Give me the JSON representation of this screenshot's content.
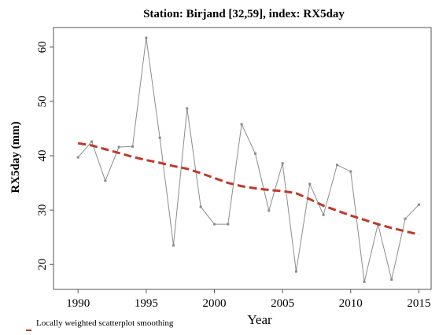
{
  "chart_data": {
    "type": "line",
    "title": "Station: Birjand [32,59], index: RX5day",
    "x_label": "Year",
    "y_label": "RX5day (mm)",
    "x": [
      1990,
      1991,
      1992,
      1993,
      1994,
      1995,
      1996,
      1997,
      1998,
      1999,
      2000,
      2001,
      2002,
      2003,
      2004,
      2005,
      2006,
      2007,
      2008,
      2009,
      2010,
      2011,
      2012,
      2013,
      2014,
      2015
    ],
    "series": [
      {
        "color": "#8c8c8c",
        "style": "solid",
        "markers": true,
        "values": [
          39.7,
          42.6,
          35.4,
          41.6,
          41.7,
          61.7,
          43.3,
          23.5,
          48.7,
          30.6,
          27.4,
          27.4,
          45.8,
          40.4,
          29.9,
          38.6,
          18.7,
          34.8,
          29.1,
          38.3,
          37.1,
          16.8,
          27.4,
          17.2,
          28.4,
          31.0
        ]
      },
      {
        "name": "Locally weighted scatterplot smoothing",
        "color": "#c0392b",
        "style": "dashed",
        "markers": false,
        "values": [
          42.3,
          41.9,
          41.2,
          40.5,
          39.8,
          39.2,
          38.7,
          38.1,
          37.6,
          36.8,
          35.9,
          35.0,
          34.4,
          34.0,
          33.7,
          33.5,
          33.1,
          32.0,
          30.8,
          29.9,
          29.0,
          28.2,
          27.4,
          26.7,
          26.1,
          25.5
        ]
      }
    ],
    "xlim": [
      1988.2,
      2015.9
    ],
    "xticks": [
      1990,
      1995,
      2000,
      2005,
      2010,
      2015
    ],
    "ylim": [
      15.4,
      63.6
    ],
    "yticks": [
      20,
      30,
      40,
      50,
      60
    ],
    "grid": false,
    "legend": "bottom-left"
  }
}
